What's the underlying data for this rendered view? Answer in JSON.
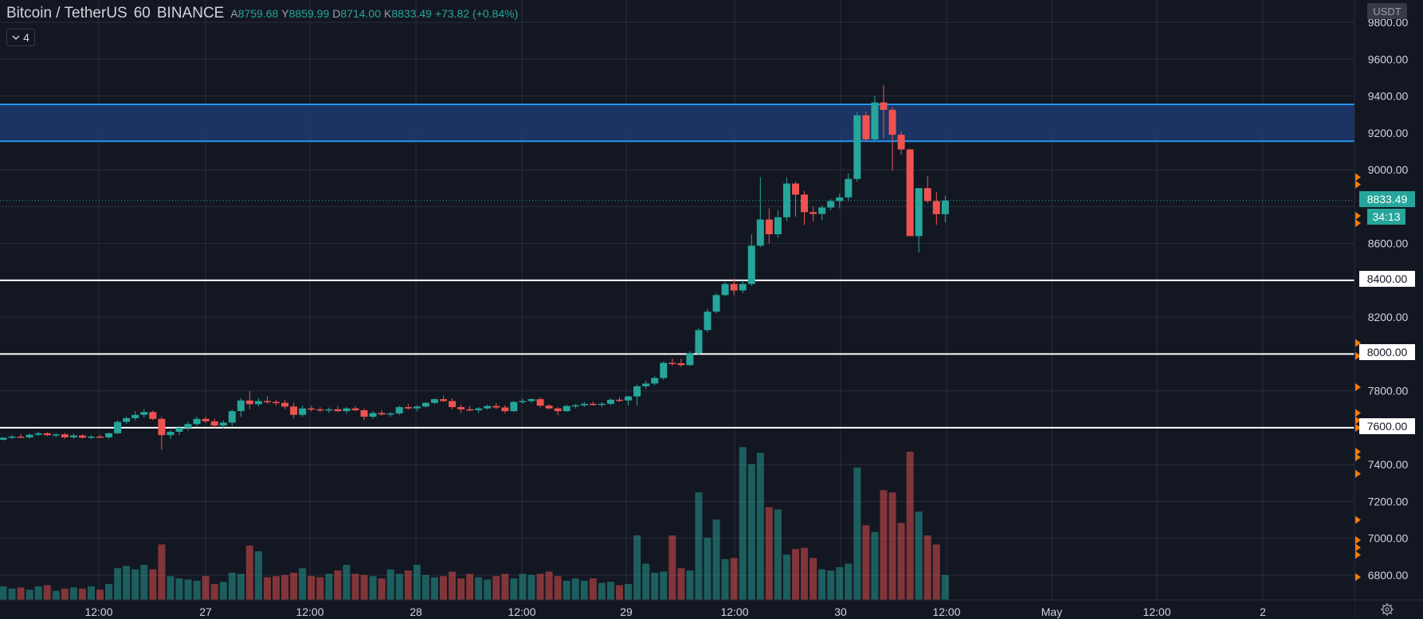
{
  "header": {
    "symbol": "Bitcoin / TetherUS",
    "interval": "60",
    "exchange": "BINANCE",
    "open_key": "A",
    "open": "8759.68",
    "high_key": "Y",
    "high": "8859.99",
    "low_key": "D",
    "low": "8714.00",
    "close_key": "K",
    "close": "8833.49",
    "change": "+73.82 (+0.84%)",
    "indicator_count": "4"
  },
  "price_axis": {
    "unit": "USDT",
    "ticks": [
      "9800.00",
      "9600.00",
      "9400.00",
      "9200.00",
      "9000.00",
      "8600.00",
      "8200.00",
      "7800.00",
      "7400.00",
      "7200.00",
      "7000.00",
      "6800.00"
    ],
    "last_price": "8833.49",
    "countdown": "34:13",
    "level_labels": [
      "8400.00",
      "8000.00",
      "7600.00"
    ]
  },
  "time_axis": {
    "ticks": [
      "12:00",
      "27",
      "12:00",
      "28",
      "12:00",
      "29",
      "12:00",
      "30",
      "12:00",
      "May",
      "12:00",
      "2"
    ]
  },
  "colors": {
    "background": "#131722",
    "up": "#26a69a",
    "down": "#ef5350",
    "zone_fill": "#1e3a6e",
    "zone_border": "#2196f3",
    "level_line": "#ffffff",
    "alert_marker": "#f57c00"
  },
  "chart_data": {
    "type": "candlestick",
    "title": "Bitcoin / TetherUS 60 BINANCE",
    "ylim": [
      6700,
      9850
    ],
    "resistance_zone": [
      9155,
      9355
    ],
    "horizontal_levels": [
      8400,
      8000,
      7600
    ],
    "candles": [
      [
        7535,
        7548,
        7530,
        7546
      ],
      [
        7546,
        7560,
        7540,
        7552
      ],
      [
        7552,
        7565,
        7545,
        7548
      ],
      [
        7548,
        7570,
        7540,
        7562
      ],
      [
        7562,
        7578,
        7555,
        7570
      ],
      [
        7570,
        7575,
        7555,
        7560
      ],
      [
        7560,
        7570,
        7548,
        7564
      ],
      [
        7564,
        7572,
        7540,
        7548
      ],
      [
        7548,
        7568,
        7540,
        7558
      ],
      [
        7558,
        7565,
        7542,
        7546
      ],
      [
        7546,
        7560,
        7538,
        7552
      ],
      [
        7552,
        7562,
        7545,
        7548
      ],
      [
        7548,
        7575,
        7540,
        7570
      ],
      [
        7570,
        7640,
        7565,
        7632
      ],
      [
        7632,
        7660,
        7620,
        7652
      ],
      [
        7652,
        7690,
        7640,
        7670
      ],
      [
        7670,
        7700,
        7655,
        7685
      ],
      [
        7685,
        7695,
        7640,
        7648
      ],
      [
        7648,
        7660,
        7480,
        7560
      ],
      [
        7560,
        7590,
        7540,
        7578
      ],
      [
        7578,
        7610,
        7560,
        7600
      ],
      [
        7600,
        7632,
        7585,
        7620
      ],
      [
        7620,
        7660,
        7610,
        7648
      ],
      [
        7648,
        7660,
        7625,
        7635
      ],
      [
        7635,
        7650,
        7600,
        7612
      ],
      [
        7612,
        7640,
        7595,
        7628
      ],
      [
        7628,
        7700,
        7610,
        7690
      ],
      [
        7690,
        7760,
        7660,
        7748
      ],
      [
        7748,
        7800,
        7700,
        7728
      ],
      [
        7728,
        7760,
        7715,
        7745
      ],
      [
        7745,
        7770,
        7730,
        7740
      ],
      [
        7740,
        7752,
        7720,
        7735
      ],
      [
        7735,
        7752,
        7700,
        7715
      ],
      [
        7715,
        7735,
        7650,
        7670
      ],
      [
        7670,
        7720,
        7660,
        7705
      ],
      [
        7705,
        7720,
        7690,
        7700
      ],
      [
        7700,
        7712,
        7685,
        7695
      ],
      [
        7695,
        7710,
        7680,
        7700
      ],
      [
        7700,
        7718,
        7685,
        7690
      ],
      [
        7690,
        7712,
        7675,
        7705
      ],
      [
        7705,
        7718,
        7690,
        7695
      ],
      [
        7695,
        7705,
        7640,
        7660
      ],
      [
        7660,
        7690,
        7650,
        7680
      ],
      [
        7680,
        7695,
        7665,
        7672
      ],
      [
        7672,
        7685,
        7660,
        7678
      ],
      [
        7678,
        7720,
        7670,
        7712
      ],
      [
        7712,
        7730,
        7698,
        7705
      ],
      [
        7705,
        7722,
        7690,
        7715
      ],
      [
        7715,
        7740,
        7710,
        7735
      ],
      [
        7735,
        7760,
        7728,
        7755
      ],
      [
        7755,
        7775,
        7740,
        7745
      ],
      [
        7745,
        7760,
        7700,
        7712
      ],
      [
        7712,
        7725,
        7680,
        7700
      ],
      [
        7700,
        7718,
        7690,
        7695
      ],
      [
        7695,
        7712,
        7680,
        7705
      ],
      [
        7705,
        7725,
        7698,
        7718
      ],
      [
        7718,
        7735,
        7700,
        7710
      ],
      [
        7710,
        7722,
        7680,
        7690
      ],
      [
        7690,
        7745,
        7685,
        7740
      ],
      [
        7740,
        7758,
        7730,
        7745
      ],
      [
        7745,
        7760,
        7735,
        7755
      ],
      [
        7755,
        7765,
        7710,
        7720
      ],
      [
        7720,
        7728,
        7700,
        7705
      ],
      [
        7705,
        7712,
        7668,
        7690
      ],
      [
        7690,
        7725,
        7685,
        7718
      ],
      [
        7718,
        7730,
        7705,
        7722
      ],
      [
        7722,
        7740,
        7712,
        7730
      ],
      [
        7730,
        7742,
        7720,
        7725
      ],
      [
        7725,
        7738,
        7712,
        7730
      ],
      [
        7730,
        7760,
        7722,
        7752
      ],
      [
        7752,
        7765,
        7740,
        7748
      ],
      [
        7748,
        7775,
        7720,
        7770
      ],
      [
        7770,
        7835,
        7720,
        7825
      ],
      [
        7825,
        7855,
        7810,
        7840
      ],
      [
        7840,
        7880,
        7830,
        7870
      ],
      [
        7870,
        7960,
        7860,
        7952
      ],
      [
        7952,
        7975,
        7935,
        7950
      ],
      [
        7950,
        7975,
        7930,
        7940
      ],
      [
        7940,
        8015,
        7935,
        8005
      ],
      [
        8005,
        8140,
        7995,
        8130
      ],
      [
        8130,
        8245,
        8120,
        8230
      ],
      [
        8230,
        8330,
        8220,
        8320
      ],
      [
        8320,
        8390,
        8315,
        8380
      ],
      [
        8380,
        8410,
        8320,
        8345
      ],
      [
        8345,
        8400,
        8330,
        8380
      ],
      [
        8380,
        8650,
        8370,
        8588
      ],
      [
        8588,
        8960,
        8580,
        8730
      ],
      [
        8730,
        8790,
        8600,
        8650
      ],
      [
        8650,
        8780,
        8630,
        8742
      ],
      [
        8742,
        8958,
        8720,
        8925
      ],
      [
        8925,
        8935,
        8745,
        8865
      ],
      [
        8865,
        8885,
        8700,
        8770
      ],
      [
        8770,
        8800,
        8720,
        8760
      ],
      [
        8760,
        8805,
        8725,
        8795
      ],
      [
        8795,
        8840,
        8780,
        8830
      ],
      [
        8830,
        8870,
        8790,
        8850
      ],
      [
        8850,
        8980,
        8830,
        8950
      ],
      [
        8950,
        9315,
        8935,
        9295
      ],
      [
        9295,
        9315,
        9150,
        9165
      ],
      [
        9165,
        9400,
        9150,
        9365
      ],
      [
        9365,
        9460,
        9170,
        9325
      ],
      [
        9325,
        9340,
        8995,
        9190
      ],
      [
        9190,
        9210,
        9080,
        9110
      ],
      [
        9110,
        9115,
        8640,
        8640
      ],
      [
        8640,
        8900,
        8550,
        8900
      ],
      [
        8900,
        8965,
        8820,
        8830
      ],
      [
        8830,
        8880,
        8700,
        8759
      ],
      [
        8759,
        8860,
        8714,
        8833
      ]
    ],
    "volume": [
      12,
      10,
      11,
      9,
      12,
      13,
      8,
      10,
      11,
      10,
      12,
      9,
      14,
      28,
      30,
      27,
      31,
      27,
      49,
      21,
      19,
      18,
      17,
      21,
      14,
      16,
      24,
      23,
      48,
      43,
      20,
      21,
      22,
      24,
      28,
      21,
      20,
      23,
      26,
      31,
      23,
      22,
      21,
      19,
      27,
      23,
      26,
      31,
      22,
      20,
      21,
      25,
      19,
      23,
      20,
      18,
      21,
      23,
      19,
      23,
      22,
      23,
      25,
      21,
      17,
      19,
      17,
      19,
      15,
      16,
      13,
      14,
      57,
      32,
      24,
      25,
      57,
      28,
      26,
      95,
      55,
      71,
      36,
      37,
      135,
      120,
      130,
      82,
      80,
      40,
      45,
      46,
      37,
      27,
      26,
      29,
      32,
      117,
      66,
      60,
      97,
      95,
      68,
      131,
      78,
      57,
      49,
      22
    ]
  }
}
